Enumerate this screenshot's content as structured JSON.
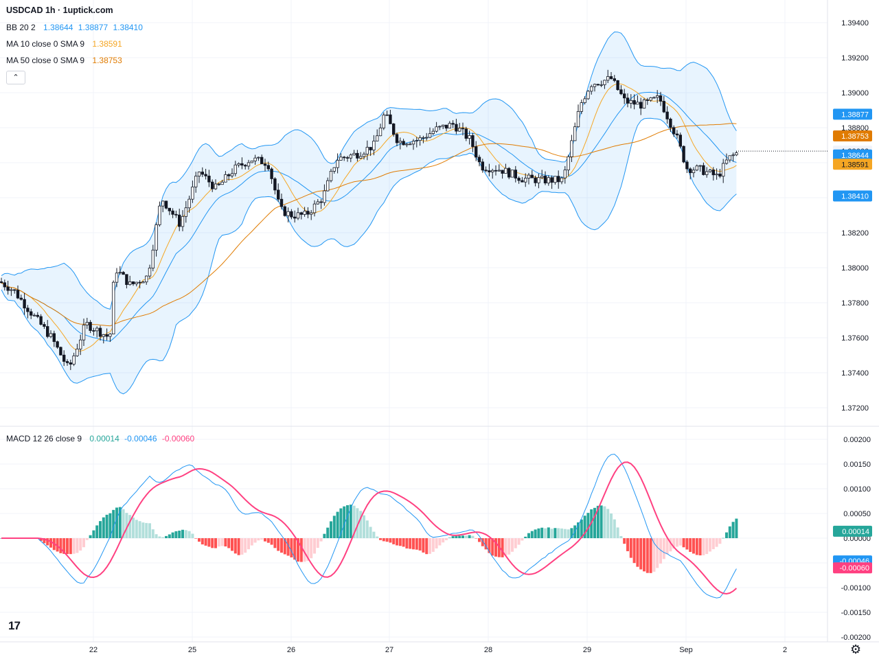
{
  "title": "USDCAD 1h · 1uptick.com",
  "legend": {
    "bb": {
      "label": "BB 20 2",
      "values": [
        "1.38644",
        "1.38877",
        "1.38410"
      ],
      "color": "#2196f3"
    },
    "ma10": {
      "label": "MA 10 close 0 SMA 9",
      "value": "1.38591",
      "color": "#f5a623"
    },
    "ma50": {
      "label": "MA 50 close 0 SMA 9",
      "value": "1.38753",
      "color": "#e07b00"
    },
    "macd": {
      "label": "MACD 12 26 close 9",
      "values": [
        "0.00014",
        "-0.00046",
        "-0.00060"
      ],
      "colors": [
        "#26a69a",
        "#2196f3",
        "#ff4081"
      ]
    }
  },
  "icons": {
    "collapse": "chevron-up-icon",
    "logo": "tradingview-logo",
    "settings": "gear-icon"
  },
  "logo_text": "17",
  "collapse_glyph": "⌃",
  "settings_glyph": "⚙",
  "price_axis": {
    "ticks": [
      "1.39400",
      "1.39200",
      "1.39000",
      "1.38800",
      "1.38600",
      "1.38400",
      "1.38200",
      "1.38000",
      "1.37800",
      "1.37600",
      "1.37400",
      "1.37200"
    ],
    "range": [
      1.3712,
      1.3942
    ]
  },
  "price_labels": [
    {
      "text": "1.38877",
      "value": 1.38877,
      "bg": "#2196f3",
      "fg": "#ffffff"
    },
    {
      "text": "1.38753",
      "value": 1.38753,
      "bg": "#e07b00",
      "fg": "#ffffff"
    },
    {
      "text": "1.38666",
      "value": 1.38666,
      "bg": "#f0f3fa",
      "fg": "#131722"
    },
    {
      "text": "1.38644",
      "value": 1.38644,
      "bg": "#2196f3",
      "fg": "#ffffff"
    },
    {
      "text": "1.38591",
      "value": 1.38591,
      "bg": "#f5a623",
      "fg": "#131722"
    },
    {
      "text": "1.38410",
      "value": 1.3841,
      "bg": "#2196f3",
      "fg": "#ffffff"
    }
  ],
  "macd_axis": {
    "ticks": [
      "0.00200",
      "0.00150",
      "0.00100",
      "0.00050",
      "0.00000",
      "-0.00050",
      "-0.00100",
      "-0.00150",
      "-0.00200"
    ],
    "range": [
      -0.002,
      0.002
    ]
  },
  "macd_labels": [
    {
      "text": "0.00014",
      "value": 0.00014,
      "bg": "#26a69a",
      "fg": "#ffffff"
    },
    {
      "text": "-0.00046",
      "value": -0.00046,
      "bg": "#2196f3",
      "fg": "#ffffff"
    },
    {
      "text": "-0.00060",
      "value": -0.0006,
      "bg": "#ff4081",
      "fg": "#ffffff"
    }
  ],
  "time_axis": [
    "22",
    "25",
    "26",
    "27",
    "28",
    "29",
    "Sep",
    "2"
  ],
  "chart_data": {
    "type": "candlestick",
    "symbol": "USDCAD",
    "interval": "1h",
    "x": [
      "22",
      "25",
      "26",
      "27",
      "28",
      "29",
      "Sep"
    ],
    "series": [
      {
        "name": "close",
        "values": [
          1.3759,
          1.3862,
          1.3835,
          1.3878,
          1.3852,
          1.3895,
          1.3866
        ]
      },
      {
        "name": "BB basis",
        "values": [
          1.3768,
          1.385,
          1.3848,
          1.387,
          1.3858,
          1.389,
          1.3864
        ]
      },
      {
        "name": "MA 10",
        "values": [
          1.3765,
          1.3858,
          1.384,
          1.3875,
          1.3855,
          1.3893,
          1.3859
        ]
      },
      {
        "name": "MA 50",
        "values": [
          1.378,
          1.3805,
          1.3835,
          1.3858,
          1.3866,
          1.387,
          1.3875
        ]
      }
    ],
    "macd": {
      "macd": 0.00014,
      "signal": -0.00046,
      "histogram": -0.0006
    }
  }
}
